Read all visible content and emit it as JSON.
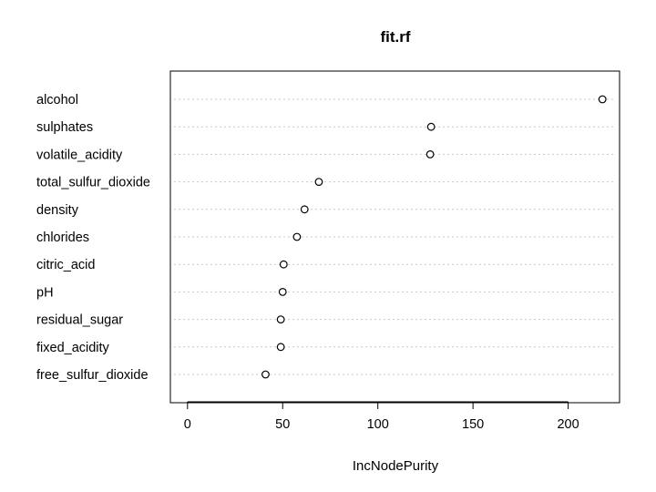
{
  "chart_data": {
    "type": "scatter",
    "title": "fit.rf",
    "xlabel": "IncNodePurity",
    "ylabel": "",
    "categories": [
      "alcohol",
      "sulphates",
      "volatile_acidity",
      "total_sulfur_dioxide",
      "density",
      "chlorides",
      "citric_acid",
      "pH",
      "residual_sugar",
      "fixed_acidity",
      "free_sulfur_dioxide"
    ],
    "values": [
      218,
      128,
      127.5,
      69,
      61.5,
      57.5,
      50.5,
      50,
      49,
      49,
      41
    ],
    "xlim": [
      -9,
      227
    ],
    "xticks": [
      0,
      50,
      100,
      150,
      200
    ],
    "grid": "dotted horizontal guide lines",
    "marker": "open-circle"
  }
}
